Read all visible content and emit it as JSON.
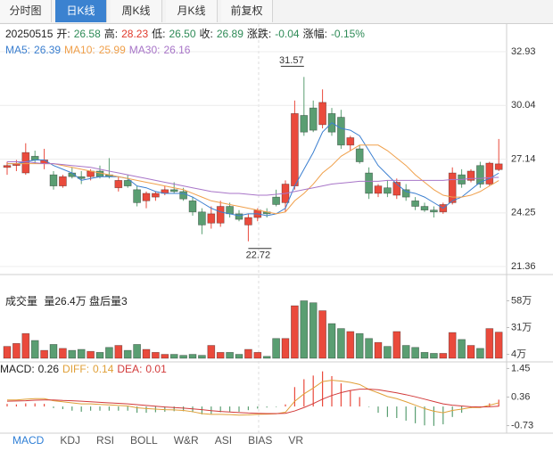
{
  "tabs": {
    "items": [
      "分时图",
      "日K线",
      "周K线",
      "月K线",
      "前复权"
    ],
    "active": 1
  },
  "info": {
    "date": "20250515",
    "items": [
      {
        "label": "开:",
        "value": "26.58",
        "color": "#2e8b57"
      },
      {
        "label": "高:",
        "value": "28.23",
        "color": "#e0392b"
      },
      {
        "label": "低:",
        "value": "26.50",
        "color": "#2e8b57"
      },
      {
        "label": "收:",
        "value": "26.89",
        "color": "#2e8b57"
      },
      {
        "label": "涨跌:",
        "value": "-0.04",
        "color": "#2e8b57"
      },
      {
        "label": "涨幅:",
        "value": "-0.15%",
        "color": "#2e8b57"
      }
    ]
  },
  "chart_data": {
    "type": "candlestick",
    "up_color": "#ea4a3c",
    "down_color": "#5a9e72",
    "grid": true,
    "ylim": [
      20.93,
      33.41
    ],
    "yticks": [
      32.93,
      30.04,
      27.14,
      24.25,
      21.36
    ],
    "open": [
      26.7,
      26.8,
      26.4,
      27.3,
      26.9,
      26.3,
      25.7,
      26.4,
      26.2,
      26.2,
      26.5,
      26.3,
      25.6,
      26.0,
      25.5,
      24.9,
      25.1,
      25.3,
      25.5,
      25.4,
      24.9,
      24.3,
      23.7,
      23.7,
      24.6,
      24.2,
      23.6,
      24.0,
      24.3,
      25.1,
      24.8,
      25.7,
      29.5,
      29.9,
      29.0,
      29.6,
      29.4,
      27.9,
      27.7,
      26.4,
      25.3,
      25.6,
      25.2,
      25.5,
      24.9,
      24.6,
      24.4,
      24.3,
      24.8,
      26.3,
      26.0,
      26.8,
      25.8,
      26.58
    ],
    "high": [
      27.0,
      27.1,
      28.0,
      27.6,
      27.7,
      26.5,
      26.3,
      26.7,
      26.5,
      26.6,
      26.8,
      27.2,
      26.2,
      26.3,
      25.7,
      25.4,
      25.4,
      25.7,
      25.9,
      25.6,
      25.1,
      24.5,
      24.6,
      24.9,
      24.8,
      24.4,
      24.2,
      24.5,
      24.5,
      25.5,
      26.0,
      30.3,
      31.57,
      30.3,
      30.9,
      29.9,
      29.8,
      28.4,
      27.9,
      26.7,
      25.8,
      26.0,
      26.1,
      25.8,
      25.1,
      24.8,
      24.6,
      24.8,
      26.7,
      26.6,
      26.6,
      27.0,
      27.0,
      28.23
    ],
    "low": [
      26.3,
      26.5,
      26.3,
      26.9,
      26.6,
      25.5,
      25.6,
      26.1,
      25.8,
      26.0,
      26.1,
      26.1,
      25.4,
      25.6,
      24.6,
      24.5,
      24.9,
      25.2,
      25.3,
      24.9,
      24.1,
      23.1,
      23.4,
      23.5,
      24.0,
      23.8,
      22.72,
      23.8,
      24.0,
      24.6,
      24.3,
      25.5,
      28.4,
      28.6,
      28.8,
      28.4,
      27.7,
      27.6,
      26.9,
      25.0,
      25.1,
      25.1,
      25.0,
      24.9,
      24.4,
      24.3,
      24.0,
      24.2,
      24.7,
      25.6,
      25.9,
      25.6,
      25.7,
      26.5
    ],
    "close": [
      26.8,
      26.9,
      27.5,
      27.1,
      27.1,
      25.7,
      26.2,
      26.2,
      26.1,
      26.5,
      26.2,
      26.2,
      26.0,
      25.7,
      24.8,
      25.3,
      25.3,
      25.5,
      25.4,
      25.0,
      24.3,
      23.6,
      24.2,
      24.6,
      24.2,
      23.9,
      24.0,
      24.4,
      24.2,
      24.7,
      25.8,
      29.6,
      28.6,
      28.7,
      30.2,
      28.6,
      27.9,
      28.3,
      27.0,
      25.3,
      25.7,
      25.3,
      25.9,
      25.1,
      24.6,
      24.4,
      24.3,
      24.7,
      26.4,
      25.8,
      26.5,
      25.8,
      26.93,
      26.89
    ],
    "series": [
      {
        "name": "MA5:",
        "color": "#3b7fd0",
        "values": [
          26.9,
          26.9,
          27.0,
          27.1,
          27.1,
          26.8,
          26.6,
          26.4,
          26.0,
          26.1,
          26.2,
          26.2,
          26.2,
          26.1,
          25.7,
          25.6,
          25.4,
          25.3,
          25.3,
          25.3,
          25.1,
          24.8,
          24.5,
          24.3,
          24.2,
          24.1,
          24.2,
          24.2,
          24.1,
          24.2,
          24.5,
          25.7,
          26.6,
          27.5,
          28.6,
          29.1,
          28.8,
          28.7,
          28.4,
          27.6,
          26.8,
          26.3,
          25.8,
          25.4,
          25.3,
          25.1,
          24.8,
          24.5,
          24.9,
          25.1,
          25.5,
          25.9,
          26.1,
          26.39
        ]
      },
      {
        "name": "MA10:",
        "color": "#f0a04b",
        "values": [
          26.9,
          26.9,
          26.9,
          26.9,
          26.9,
          26.9,
          26.8,
          26.7,
          26.6,
          26.5,
          26.4,
          26.3,
          26.2,
          26.1,
          26.0,
          25.9,
          25.8,
          25.7,
          25.6,
          25.5,
          25.3,
          25.1,
          24.9,
          24.8,
          24.7,
          24.6,
          24.5,
          24.4,
          24.3,
          24.2,
          24.3,
          24.9,
          25.3,
          25.8,
          26.4,
          26.8,
          27.3,
          27.6,
          27.9,
          27.9,
          27.9,
          27.6,
          27.2,
          26.8,
          26.3,
          25.9,
          25.5,
          25.2,
          25.1,
          25.1,
          25.2,
          25.4,
          25.7,
          25.99
        ]
      },
      {
        "name": "MA30:",
        "color": "#a875c8",
        "values": [
          27.0,
          27.0,
          27.0,
          26.95,
          26.9,
          26.9,
          26.85,
          26.8,
          26.75,
          26.7,
          26.6,
          26.5,
          26.4,
          26.3,
          26.2,
          26.1,
          26.0,
          25.9,
          25.8,
          25.7,
          25.6,
          25.5,
          25.4,
          25.35,
          25.3,
          25.3,
          25.25,
          25.2,
          25.2,
          25.25,
          25.3,
          25.4,
          25.5,
          25.6,
          25.7,
          25.8,
          25.85,
          25.9,
          25.95,
          25.95,
          25.95,
          26.0,
          26.0,
          26.0,
          26.0,
          26.0,
          26.0,
          26.0,
          26.05,
          26.05,
          26.1,
          26.1,
          26.15,
          26.16
        ]
      }
    ],
    "volume": {
      "title": "成交量",
      "info": "量26.4万 盘后量3",
      "ylim": [
        0,
        62
      ],
      "yticks": [
        {
          "value": 58,
          "label": "58万"
        },
        {
          "value": 31,
          "label": "31万"
        },
        {
          "value": 4,
          "label": "4万"
        }
      ],
      "values": [
        12,
        15,
        25,
        18,
        8,
        14,
        10,
        8,
        9,
        7,
        6,
        11,
        13,
        8,
        14,
        9,
        6,
        4,
        4,
        3,
        4,
        3,
        13,
        6,
        6,
        4,
        9,
        6,
        2,
        20,
        20,
        53,
        58,
        56,
        48,
        35,
        30,
        27,
        25,
        20,
        16,
        12,
        27,
        13,
        11,
        6,
        5,
        5,
        26,
        19,
        13,
        10,
        30,
        26.4
      ]
    },
    "macd": {
      "ylim": [
        -0.95,
        1.6
      ],
      "yticks": [
        1.45,
        0.36,
        -0.73
      ],
      "hist": {
        "name": "MACD:",
        "values": [
          0.1,
          0.08,
          0.12,
          0.12,
          0.1,
          -0.06,
          -0.1,
          -0.16,
          -0.2,
          -0.16,
          -0.16,
          -0.16,
          -0.16,
          -0.16,
          -0.24,
          -0.24,
          -0.22,
          -0.2,
          -0.18,
          -0.18,
          -0.22,
          -0.3,
          -0.28,
          -0.22,
          -0.2,
          -0.2,
          -0.14,
          -0.08,
          -0.04,
          -0.02,
          0.08,
          0.74,
          1.04,
          1.18,
          1.34,
          1.16,
          0.88,
          0.62,
          0.36,
          -0.02,
          -0.24,
          -0.4,
          -0.44,
          -0.54,
          -0.64,
          -0.72,
          -0.74,
          -0.68,
          -0.4,
          -0.24,
          -0.06,
          -0.04,
          0.12,
          0.26
        ]
      },
      "series": [
        {
          "name": "DIFF:",
          "color": "#e0a038",
          "values": [
            0.25,
            0.25,
            0.28,
            0.3,
            0.3,
            0.22,
            0.18,
            0.14,
            0.1,
            0.1,
            0.08,
            0.06,
            0.04,
            0.02,
            -0.05,
            -0.08,
            -0.1,
            -0.12,
            -0.13,
            -0.15,
            -0.2,
            -0.27,
            -0.3,
            -0.3,
            -0.31,
            -0.33,
            -0.32,
            -0.3,
            -0.29,
            -0.28,
            -0.22,
            0.2,
            0.48,
            0.7,
            0.95,
            1.0,
            0.97,
            0.92,
            0.84,
            0.65,
            0.52,
            0.38,
            0.3,
            0.18,
            0.05,
            -0.08,
            -0.18,
            -0.24,
            -0.15,
            -0.1,
            -0.04,
            -0.04,
            0.05,
            0.14
          ]
        },
        {
          "name": "DEA:",
          "color": "#d23a3a",
          "values": [
            0.2,
            0.21,
            0.22,
            0.24,
            0.25,
            0.25,
            0.23,
            0.22,
            0.2,
            0.18,
            0.16,
            0.14,
            0.12,
            0.1,
            0.07,
            0.04,
            0.01,
            -0.02,
            -0.04,
            -0.06,
            -0.09,
            -0.12,
            -0.16,
            -0.19,
            -0.21,
            -0.23,
            -0.25,
            -0.26,
            -0.27,
            -0.27,
            -0.26,
            -0.17,
            -0.04,
            0.11,
            0.28,
            0.42,
            0.53,
            0.61,
            0.66,
            0.66,
            0.64,
            0.58,
            0.52,
            0.45,
            0.37,
            0.28,
            0.19,
            0.1,
            0.05,
            0.02,
            -0.01,
            -0.02,
            -0.01,
            0.01
          ]
        }
      ]
    }
  },
  "indicator_tabs": {
    "items": [
      "MACD",
      "KDJ",
      "RSI",
      "BOLL",
      "W&R",
      "ASI",
      "BIAS",
      "VR"
    ],
    "active": 0
  }
}
